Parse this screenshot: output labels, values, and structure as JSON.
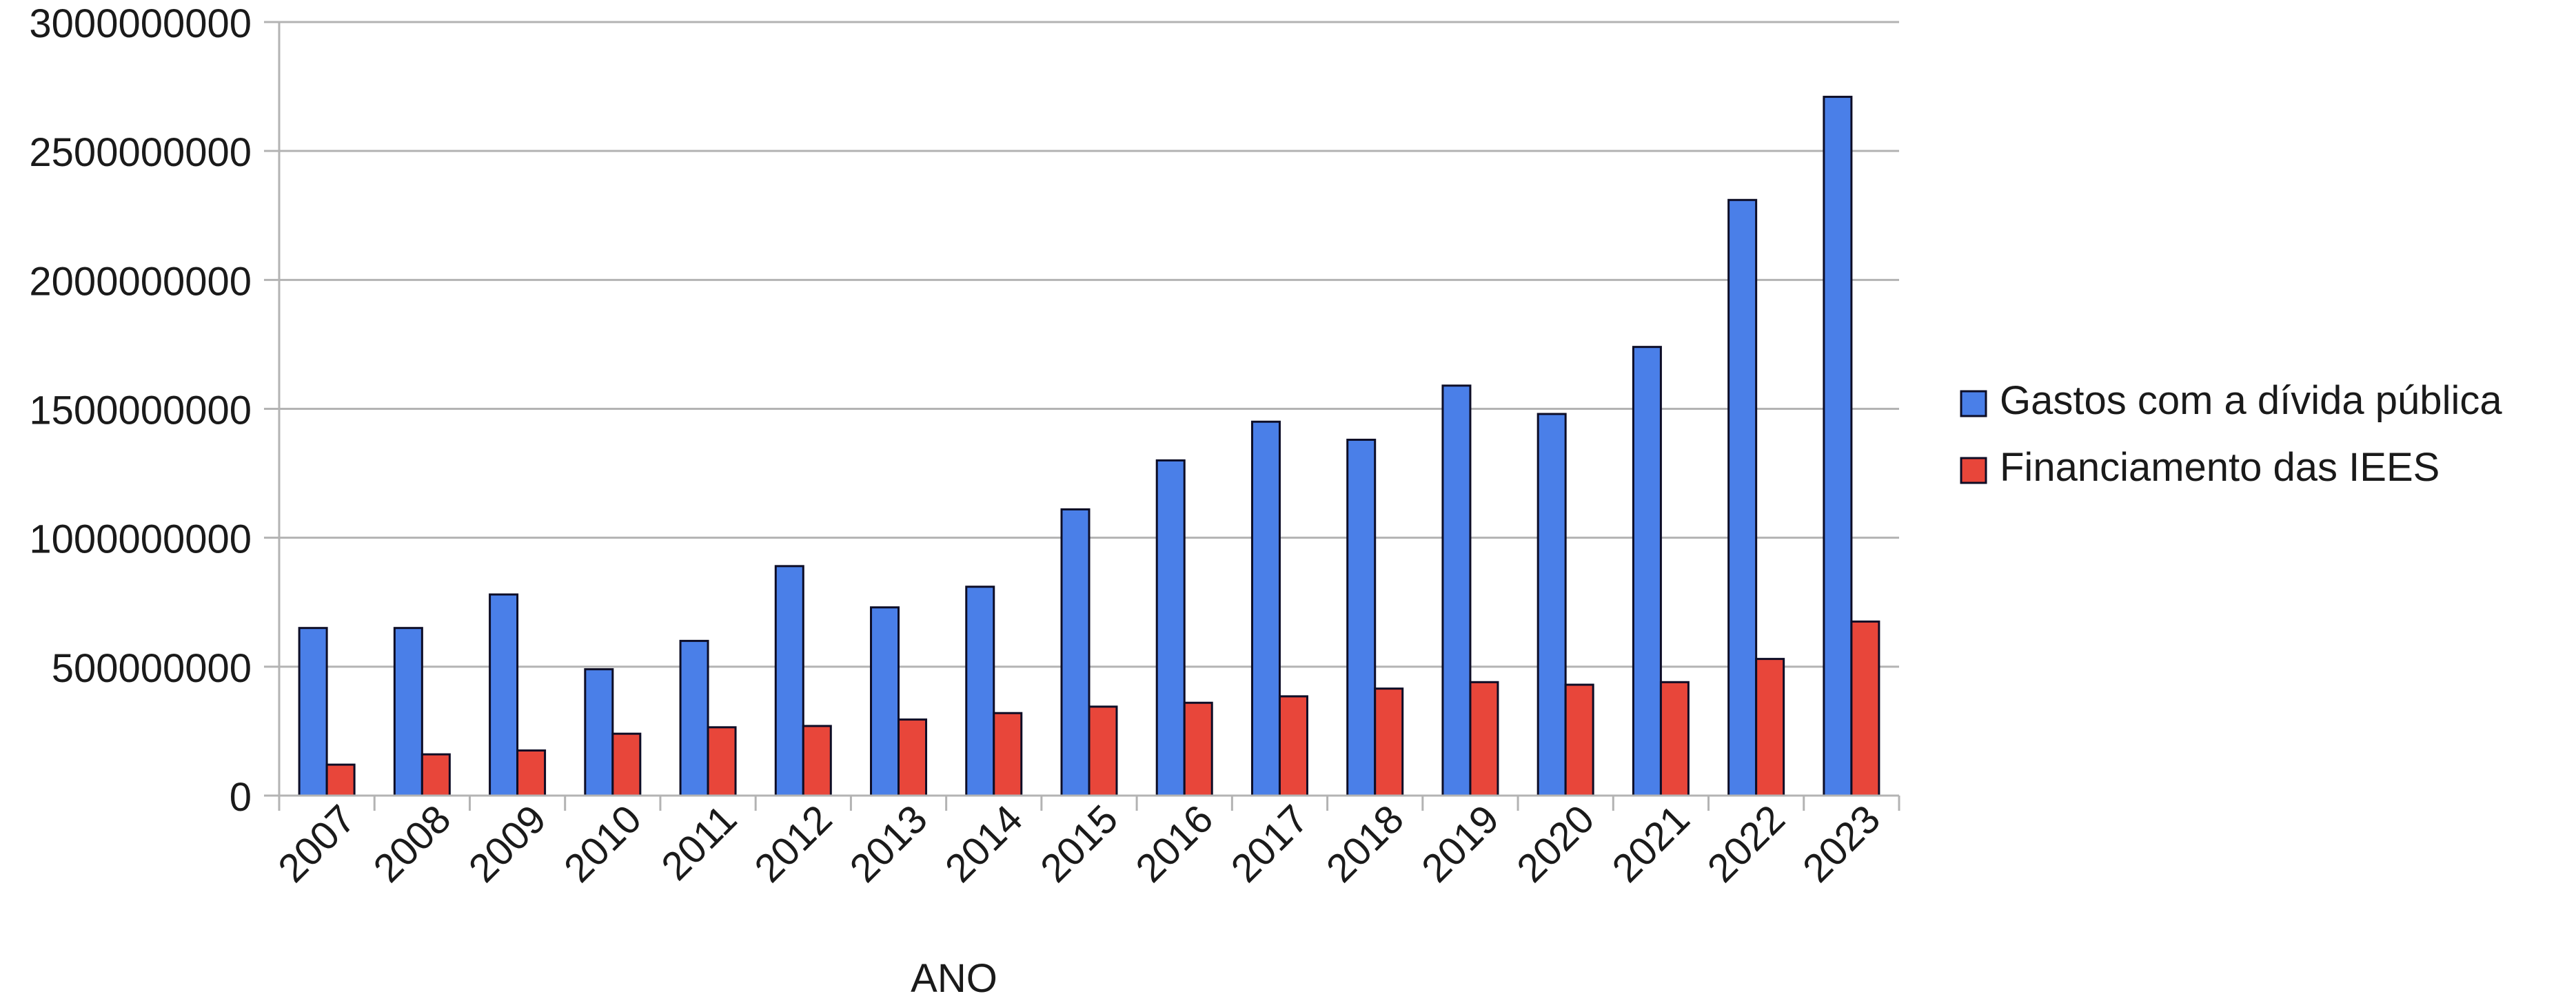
{
  "chart_data": {
    "type": "bar",
    "title": "",
    "xlabel": "ANO",
    "ylabel": "",
    "ylim": [
      0,
      3000000000
    ],
    "yticks": [
      0,
      500000000,
      1000000000,
      1500000000,
      2000000000,
      2500000000,
      3000000000
    ],
    "ytick_labels": [
      "0",
      "500000000",
      "1000000000",
      "1500000000",
      "2000000000",
      "2500000000",
      "3000000000"
    ],
    "grid": true,
    "legend_position": "right",
    "categories": [
      "2007",
      "2008",
      "2009",
      "2010",
      "2011",
      "2012",
      "2013",
      "2014",
      "2015",
      "2016",
      "2017",
      "2018",
      "2019",
      "2020",
      "2021",
      "2022",
      "2023"
    ],
    "series": [
      {
        "name": "Gastos com a dívida pública",
        "color": "#4a7fe8",
        "values": [
          650000000,
          650000000,
          780000000,
          490000000,
          600000000,
          890000000,
          730000000,
          810000000,
          1110000000,
          1300000000,
          1450000000,
          1380000000,
          1590000000,
          1480000000,
          1740000000,
          2310000000,
          2710000000
        ]
      },
      {
        "name": "Financiamento das IEES",
        "color": "#e8463a",
        "values": [
          120000000,
          160000000,
          175000000,
          240000000,
          265000000,
          270000000,
          295000000,
          320000000,
          345000000,
          360000000,
          385000000,
          415000000,
          440000000,
          430000000,
          440000000,
          530000000,
          675000000
        ]
      }
    ]
  }
}
